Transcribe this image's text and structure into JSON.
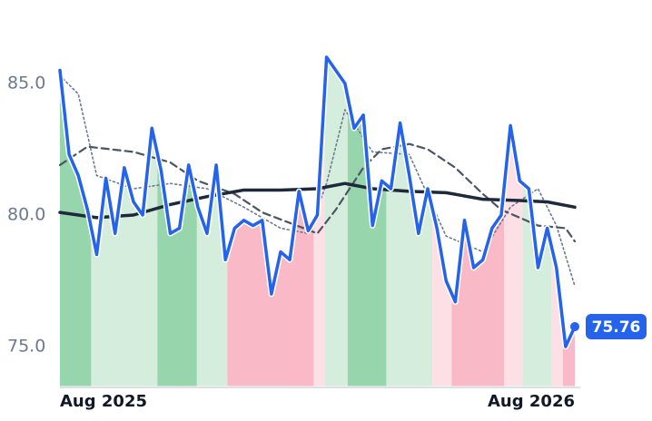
{
  "chart_data": {
    "type": "line",
    "xlim": [
      0,
      56
    ],
    "ylim": [
      73.5,
      87.5
    ],
    "xticks": [
      {
        "value": 0,
        "label": "Aug 2025"
      },
      {
        "value": 56,
        "label": "Aug 2026"
      }
    ],
    "yticks": [
      {
        "value": 75,
        "label": "75.0"
      },
      {
        "value": 80,
        "label": "80.0"
      },
      {
        "value": 85,
        "label": "85.0"
      }
    ],
    "regions": [
      {
        "x": [
          0,
          3.4
        ],
        "color": "#97d5ad"
      },
      {
        "x": [
          3.4,
          10.6
        ],
        "color": "#d4eddc"
      },
      {
        "x": [
          10.6,
          14.9
        ],
        "color": "#97d5ad"
      },
      {
        "x": [
          14.9,
          18.2
        ],
        "color": "#d4eddc"
      },
      {
        "x": [
          18.2,
          27.6
        ],
        "color": "#f9b9c6"
      },
      {
        "x": [
          27.6,
          28.8
        ],
        "color": "#fde0e6"
      },
      {
        "x": [
          28.8,
          31.3
        ],
        "color": "#d4eddc"
      },
      {
        "x": [
          31.3,
          35.5
        ],
        "color": "#97d5ad"
      },
      {
        "x": [
          35.5,
          40.5
        ],
        "color": "#d4eddc"
      },
      {
        "x": [
          40.5,
          42.6
        ],
        "color": "#fde0e6"
      },
      {
        "x": [
          42.6,
          48.3
        ],
        "color": "#f9b9c6"
      },
      {
        "x": [
          48.3,
          50.3
        ],
        "color": "#fde0e6"
      },
      {
        "x": [
          50.3,
          53.5
        ],
        "color": "#d4eddc"
      },
      {
        "x": [
          53.5,
          54.7
        ],
        "color": "#fde0e6"
      },
      {
        "x": [
          54.7,
          56
        ],
        "color": "#f9b9c6"
      }
    ],
    "series": [
      {
        "color": "#6b7a90",
        "width": 1.6,
        "dash": "2 3",
        "x": [
          0,
          2,
          4,
          8,
          12,
          16,
          20,
          24,
          27,
          29,
          31,
          34,
          38,
          42,
          46,
          49,
          52,
          54,
          56
        ],
        "values": [
          85.3,
          84.6,
          81.5,
          81.0,
          81.2,
          81.0,
          80.3,
          79.5,
          79.3,
          81.2,
          84.0,
          82.4,
          82.3,
          79.2,
          78.6,
          80.3,
          81.0,
          79.6,
          77.3
        ]
      },
      {
        "color": "#4b5563",
        "width": 2.2,
        "dash": "8 5",
        "x": [
          0,
          3,
          8,
          12,
          15,
          19,
          22,
          25,
          28,
          30,
          33,
          35,
          38,
          40,
          43,
          46,
          48,
          52,
          55,
          56
        ],
        "values": [
          81.9,
          82.6,
          82.4,
          82.0,
          81.3,
          80.8,
          80.1,
          79.7,
          79.3,
          80.2,
          81.8,
          82.5,
          82.7,
          82.5,
          81.8,
          80.8,
          80.2,
          79.6,
          79.5,
          79.0
        ]
      },
      {
        "color": "#1e293b",
        "width": 3.5,
        "dash": "",
        "x": [
          0,
          4,
          8,
          12,
          16,
          20,
          24,
          28,
          31,
          34,
          38,
          42,
          46,
          50,
          53,
          56
        ],
        "values": [
          80.1,
          79.9,
          80.0,
          80.4,
          80.7,
          80.95,
          80.95,
          81.0,
          81.2,
          81.0,
          80.9,
          80.85,
          80.6,
          80.55,
          80.5,
          80.3
        ]
      },
      {
        "color": "#2563eb",
        "width": 3.5,
        "dash": "",
        "main": true,
        "x": [
          0,
          1,
          2,
          3,
          4,
          5,
          6,
          7,
          8,
          9,
          10,
          11,
          12,
          13,
          14,
          15,
          16,
          17,
          18,
          19,
          20,
          21,
          22,
          23,
          24,
          25,
          26,
          27,
          28,
          29,
          30,
          31,
          32,
          33,
          34,
          35,
          36,
          37,
          38,
          39,
          40,
          41,
          42,
          43,
          44,
          45,
          46,
          47,
          48,
          49,
          50,
          51,
          52,
          53,
          54,
          55,
          56
        ],
        "values": [
          85.5,
          82.3,
          81.5,
          80.2,
          78.5,
          81.4,
          79.3,
          81.8,
          80.5,
          80.0,
          83.3,
          81.7,
          79.3,
          79.5,
          81.9,
          80.3,
          79.3,
          81.9,
          78.3,
          79.5,
          79.8,
          79.6,
          79.8,
          77.0,
          78.6,
          78.3,
          80.9,
          79.4,
          80.0,
          86.0,
          85.5,
          85.0,
          83.3,
          83.8,
          79.6,
          81.3,
          81.0,
          83.5,
          81.5,
          79.3,
          81.0,
          79.5,
          77.5,
          76.7,
          79.8,
          78.0,
          78.3,
          79.5,
          80.0,
          83.4,
          81.3,
          81.0,
          78.0,
          79.5,
          78.0,
          75.0,
          75.76
        ]
      }
    ]
  }
}
